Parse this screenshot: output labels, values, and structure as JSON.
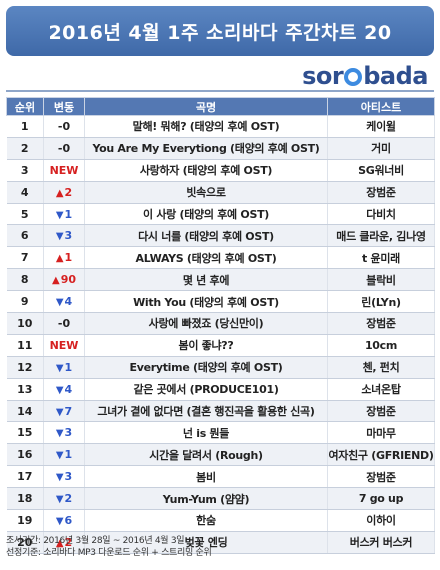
{
  "title": "2016년 4월 1주 소리바다 주간차트 20",
  "logo": {
    "pre": "sor",
    "post": "bada"
  },
  "colors": {
    "header": "#5478b3",
    "up": "#d62020",
    "down": "#2f58c8"
  },
  "headers": {
    "rank": "순위",
    "change": "변동",
    "song": "곡명",
    "artist": "아티스트"
  },
  "rows": [
    {
      "rank": "1",
      "dir": "same",
      "change": "-0",
      "song": "말해! 뭐해? (태양의 후예 OST)",
      "artist": "케이윌"
    },
    {
      "rank": "2",
      "dir": "same",
      "change": "-0",
      "song": "You Are My Everytiong (태양의 후예 OST)",
      "artist": "거미"
    },
    {
      "rank": "3",
      "dir": "new",
      "change": "NEW",
      "song": "사랑하자 (태양의 후예 OST)",
      "artist": "SG워너비"
    },
    {
      "rank": "4",
      "dir": "up",
      "change": "2",
      "song": "빗속으로",
      "artist": "장범준"
    },
    {
      "rank": "5",
      "dir": "down",
      "change": "1",
      "song": "이 사랑 (태양의 후예 OST)",
      "artist": "다비치"
    },
    {
      "rank": "6",
      "dir": "down",
      "change": "3",
      "song": "다시 너를 (태양의 후예 OST)",
      "artist": "매드 클라운, 김나영"
    },
    {
      "rank": "7",
      "dir": "up",
      "change": "1",
      "song": "ALWAYS (태양의 후예 OST)",
      "artist": "t 윤미래"
    },
    {
      "rank": "8",
      "dir": "up",
      "change": "90",
      "song": "몇 년 후에",
      "artist": "블락비"
    },
    {
      "rank": "9",
      "dir": "down",
      "change": "4",
      "song": "With You (태양의 후예 OST)",
      "artist": "린(LYn)"
    },
    {
      "rank": "10",
      "dir": "same",
      "change": "-0",
      "song": "사랑에 빠졌죠 (당신만이)",
      "artist": "장범준"
    },
    {
      "rank": "11",
      "dir": "new",
      "change": "NEW",
      "song": "봄이 좋냐??",
      "artist": "10cm"
    },
    {
      "rank": "12",
      "dir": "down",
      "change": "1",
      "song": "Everytime (태양의 후예 OST)",
      "artist": "첸, 펀치"
    },
    {
      "rank": "13",
      "dir": "down",
      "change": "4",
      "song": "같은 곳에서 (PRODUCE101)",
      "artist": "소녀온탑"
    },
    {
      "rank": "14",
      "dir": "down",
      "change": "7",
      "song": "그녀가 곁에 없다면 (결혼 행진곡을 활용한 신곡)",
      "artist": "장범준"
    },
    {
      "rank": "15",
      "dir": "down",
      "change": "3",
      "song": "넌 is 뭔들",
      "artist": "마마무"
    },
    {
      "rank": "16",
      "dir": "down",
      "change": "1",
      "song": "시간을 달려서 (Rough)",
      "artist": "여자친구 (GFRIEND)"
    },
    {
      "rank": "17",
      "dir": "down",
      "change": "3",
      "song": "봄비",
      "artist": "장범준"
    },
    {
      "rank": "18",
      "dir": "down",
      "change": "2",
      "song": "Yum-Yum (얌얌)",
      "artist": "7 go up"
    },
    {
      "rank": "19",
      "dir": "down",
      "change": "6",
      "song": "한숨",
      "artist": "이하이"
    },
    {
      "rank": "20",
      "dir": "up",
      "change": "2",
      "song": "벚꽃 엔딩",
      "artist": "버스커 버스커"
    }
  ],
  "footer": {
    "period": "조사기간: 2016년 3월 28일 ~ 2016년 4월 3일",
    "criteria": "선정기준: 소리바다 MP3 다운로드 순위 + 스트리밍 순위"
  }
}
